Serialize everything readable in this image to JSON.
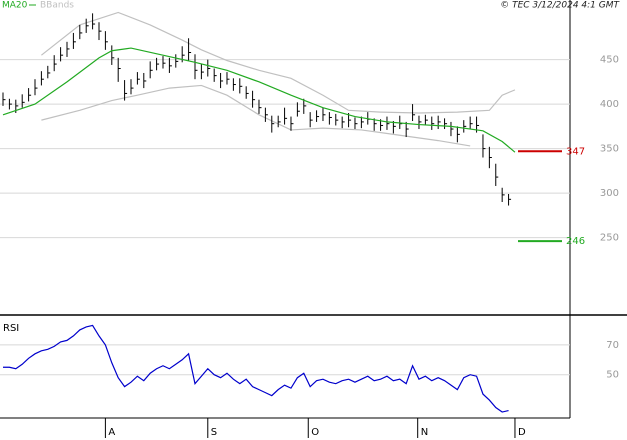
{
  "chart_data": [
    {
      "type": "ohlc",
      "credit": "© TEC 3/12/2024 4:1 GMT",
      "xlim": [
        0,
        88.6
      ],
      "ylim": [
        163,
        517
      ],
      "yticks": [
        450,
        400,
        350,
        300,
        250
      ],
      "grid": true,
      "color": "#000000",
      "close": [
        405,
        400,
        398,
        402,
        410,
        418,
        428,
        435,
        445,
        455,
        462,
        470,
        480,
        488,
        490,
        482,
        470,
        452,
        440,
        412,
        418,
        428,
        426,
        438,
        445,
        446,
        443,
        448,
        455,
        458,
        438,
        436,
        440,
        432,
        426,
        428,
        422,
        420,
        412,
        405,
        396,
        388,
        378,
        380,
        384,
        378,
        392,
        398,
        382,
        386,
        388,
        385,
        382,
        380,
        382,
        378,
        380,
        383,
        378,
        376,
        378,
        375,
        378,
        372,
        388,
        380,
        382,
        378,
        380,
        378,
        372,
        366,
        375,
        378,
        376,
        350,
        340,
        318,
        298,
        293
      ],
      "high": [
        413,
        406,
        405,
        411,
        418,
        428,
        437,
        443,
        455,
        464,
        470,
        480,
        489,
        496,
        502,
        492,
        482,
        466,
        452,
        427,
        428,
        436,
        435,
        448,
        452,
        454,
        452,
        456,
        465,
        474,
        456,
        445,
        450,
        440,
        435,
        436,
        429,
        429,
        420,
        415,
        405,
        396,
        387,
        387,
        396,
        386,
        402,
        406,
        391,
        393,
        396,
        391,
        389,
        386,
        390,
        385,
        386,
        391,
        384,
        383,
        386,
        381,
        387,
        380,
        400,
        387,
        388,
        386,
        387,
        384,
        380,
        375,
        382,
        386,
        386,
        366,
        352,
        333,
        306,
        299
      ],
      "low": [
        398,
        394,
        390,
        396,
        403,
        410,
        421,
        429,
        437,
        448,
        453,
        462,
        473,
        480,
        484,
        472,
        461,
        444,
        425,
        404,
        411,
        422,
        418,
        429,
        438,
        440,
        435,
        441,
        447,
        449,
        428,
        428,
        431,
        425,
        418,
        422,
        415,
        412,
        406,
        396,
        389,
        380,
        368,
        374,
        377,
        370,
        386,
        389,
        374,
        380,
        381,
        377,
        376,
        373,
        374,
        372,
        373,
        377,
        370,
        370,
        371,
        367,
        372,
        363,
        381,
        372,
        376,
        371,
        372,
        372,
        364,
        357,
        368,
        372,
        368,
        340,
        328,
        308,
        290,
        286
      ],
      "ma": {
        "name": "MA20",
        "color": "#22aa22",
        "x": [
          0,
          5,
          10,
          15,
          17,
          20,
          25,
          30,
          35,
          40,
          45,
          50,
          55,
          60,
          65,
          70,
          75,
          78,
          80
        ],
        "values": [
          388,
          400,
          425,
          452,
          460,
          463,
          455,
          447,
          438,
          425,
          410,
          396,
          386,
          380,
          377,
          375,
          370,
          358,
          346
        ]
      },
      "bbands": {
        "name": "BBands",
        "color": "#c0c0c0",
        "upper": {
          "x": [
            6,
            12,
            18,
            23,
            28,
            31,
            35,
            40,
            45,
            50,
            54,
            59,
            65,
            71,
            76,
            78,
            80
          ],
          "values": [
            455,
            489,
            503,
            489,
            472,
            461,
            449,
            438,
            429,
            410,
            393,
            391,
            390,
            391,
            393,
            410,
            416
          ]
        },
        "lower": {
          "x": [
            6,
            12,
            17,
            21,
            26,
            31,
            35,
            40,
            45,
            50,
            56,
            62,
            68,
            73
          ],
          "values": [
            382,
            393,
            404,
            410,
            418,
            421,
            410,
            388,
            371,
            373,
            371,
            365,
            359,
            353
          ]
        }
      },
      "levels": [
        {
          "value": 347,
          "color": "#cc0000"
        },
        {
          "value": 246,
          "color": "#22aa22"
        }
      ]
    },
    {
      "type": "line",
      "title": "RSI",
      "xlim": [
        0,
        88.6
      ],
      "xticks": [
        {
          "value": 16,
          "label": "A"
        },
        {
          "value": 32,
          "label": "S"
        },
        {
          "value": 47.7,
          "label": "O"
        },
        {
          "value": 64.8,
          "label": "N"
        },
        {
          "value": 80,
          "label": "D"
        }
      ],
      "ylim": [
        21,
        88
      ],
      "yticks": [
        70,
        50
      ],
      "grid": true,
      "series": [
        {
          "color": "#0000cc",
          "values": [
            55,
            55,
            54,
            57,
            61,
            64,
            66,
            67,
            69,
            72,
            73,
            76,
            80,
            82,
            83,
            76,
            70,
            58,
            48,
            42,
            45,
            49,
            46,
            51,
            54,
            56,
            54,
            57,
            60,
            64,
            44,
            49,
            54,
            50,
            48,
            51,
            47,
            44,
            47,
            42,
            40,
            38,
            36,
            40,
            43,
            41,
            48,
            51,
            42,
            46,
            47,
            45,
            44,
            46,
            47,
            45,
            47,
            49,
            46,
            47,
            49,
            46,
            47,
            44,
            56,
            47,
            49,
            46,
            48,
            46,
            43,
            40,
            48,
            50,
            49,
            37,
            33,
            28,
            25,
            26
          ]
        }
      ]
    }
  ]
}
